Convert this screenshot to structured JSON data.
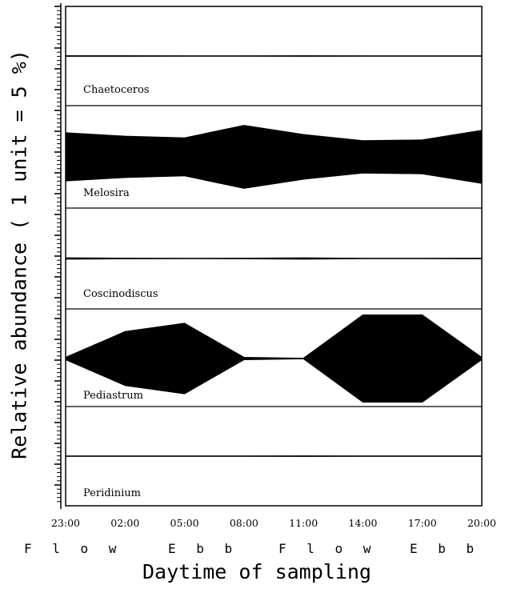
{
  "chart_data": {
    "type": "area",
    "kind": "kite-diagram",
    "xlabel": "Daytime of sampling",
    "ylabel": "Relative abundance ( 1 unit = 5 %)",
    "x": [
      "23:00",
      "02:00",
      "05:00",
      "08:00",
      "11:00",
      "14:00",
      "17:00",
      "20:00"
    ],
    "tide_labels": [
      {
        "label": "F l o w",
        "from": "23:00",
        "to": "05:00"
      },
      {
        "label": "E b b",
        "from": "05:00",
        "to": "11:00"
      },
      {
        "label": "F l o w",
        "from": "11:00",
        "to": "17:00"
      },
      {
        "label": "E b b",
        "from": "17:00",
        "to": "20:00"
      }
    ],
    "unit_percent": 5,
    "series": [
      {
        "name": "Chaetoceros",
        "values": [
          0.1,
          0.1,
          0.05,
          0.05,
          0.1,
          0.05,
          0.05,
          0.05
        ]
      },
      {
        "name": "Melosira",
        "values": [
          5.8,
          5.0,
          4.6,
          7.6,
          5.4,
          3.9,
          4.1,
          6.4
        ]
      },
      {
        "name": "Coscinodiscus",
        "values": [
          0.2,
          0.1,
          0.05,
          0.1,
          0.2,
          0.05,
          0.05,
          0.1
        ]
      },
      {
        "name": "Pediastrum",
        "values": [
          0.3,
          6.5,
          8.5,
          0.3,
          0.1,
          10.5,
          10.5,
          0.3
        ]
      },
      {
        "name": "Peridinium",
        "values": [
          0.05,
          0.05,
          0.05,
          0.05,
          0.1,
          0.05,
          0.05,
          0.05
        ]
      }
    ]
  }
}
